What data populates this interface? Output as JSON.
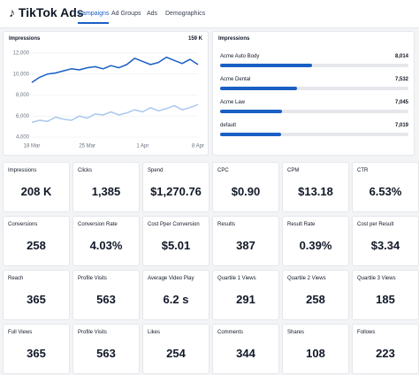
{
  "header": {
    "title": "TikTok Ads",
    "tabs": [
      "Campaigns",
      "Ad Groups",
      "Ads",
      "Demographics"
    ],
    "active_tab": 0
  },
  "chart_data": {
    "type": "line",
    "title": "Impressions",
    "total": "159 K",
    "categories": [
      "18 Mar",
      null,
      null,
      null,
      null,
      null,
      null,
      "25 Mar",
      null,
      null,
      null,
      null,
      null,
      null,
      "1 Apr",
      null,
      null,
      null,
      null,
      null,
      null,
      "8 Apr"
    ],
    "series": [
      {
        "color": "#1a5fc4",
        "values": [
          9200,
          9700,
          10000,
          10100,
          10300,
          10500,
          10400,
          10600,
          10700,
          10500,
          10800,
          10600,
          10900,
          11500,
          11200,
          10900,
          11100,
          11600,
          11300,
          11000,
          11400,
          10900
        ]
      },
      {
        "color": "#a9c8ee",
        "values": [
          5400,
          5600,
          5500,
          5900,
          5700,
          5600,
          6000,
          5800,
          6200,
          6100,
          6400,
          6100,
          6300,
          6600,
          6400,
          6800,
          6500,
          6700,
          7000,
          6600,
          6800,
          7100
        ]
      }
    ],
    "ylim": [
      4000,
      12500
    ],
    "yticks": [
      {
        "value": 4000,
        "label": "4,000"
      },
      {
        "value": 6000,
        "label": "6,000"
      },
      {
        "value": 8000,
        "label": "8,000"
      },
      {
        "value": 10000,
        "label": "10,000"
      },
      {
        "value": 12000,
        "label": "12,000"
      }
    ]
  },
  "breakdown": {
    "title": "Impressions",
    "color": "#1a5fc4",
    "xlim": [
      5000,
      11200
    ],
    "items": [
      {
        "name": "Acme Auto Body",
        "value": 8014,
        "label": "8,014"
      },
      {
        "name": "Acme Dental",
        "value": 7532,
        "label": "7,532"
      },
      {
        "name": "Acme Law",
        "value": 7045,
        "label": "7,045"
      },
      {
        "name": "default",
        "value": 7019,
        "label": "7,019"
      }
    ]
  },
  "kpis": [
    [
      {
        "label": "Impressions",
        "value": "208 K"
      },
      {
        "label": "Clicks",
        "value": "1,385"
      },
      {
        "label": "Spend",
        "value": "$1,270.76"
      },
      {
        "label": "CPC",
        "value": "$0.90"
      },
      {
        "label": "CPM",
        "value": "$13.18"
      },
      {
        "label": "CTR",
        "value": "6.53%"
      }
    ],
    [
      {
        "label": "Conversions",
        "value": "258"
      },
      {
        "label": "Conversion Rate",
        "value": "4.03%"
      },
      {
        "label": "Cost Pper Conversion",
        "value": "$5.01"
      },
      {
        "label": "Results",
        "value": "387"
      },
      {
        "label": "Result Rate",
        "value": "0.39%"
      },
      {
        "label": "Cost per Result",
        "value": "$3.34"
      }
    ],
    [
      {
        "label": "Reach",
        "value": "365"
      },
      {
        "label": "Profile Visits",
        "value": "563"
      },
      {
        "label": "Average Video Play",
        "value": "6.2 s"
      },
      {
        "label": "Quartile 1 Views",
        "value": "291"
      },
      {
        "label": "Quartile 2 Views",
        "value": "258"
      },
      {
        "label": "Quartile 3 Views",
        "value": "185"
      }
    ],
    [
      {
        "label": "Full Views",
        "value": "365"
      },
      {
        "label": "Profile Visits",
        "value": "563"
      },
      {
        "label": "Likes",
        "value": "254"
      },
      {
        "label": "Comments",
        "value": "344"
      },
      {
        "label": "Shares",
        "value": "108"
      },
      {
        "label": "Follows",
        "value": "223"
      }
    ]
  ]
}
